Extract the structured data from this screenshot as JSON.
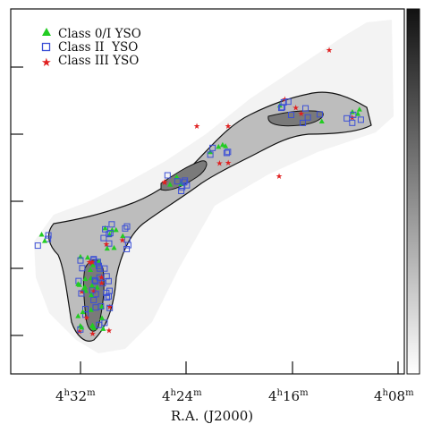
{
  "figure": {
    "xlabel": "R.A. (J2000)",
    "xticks": [
      {
        "h": "4",
        "m": "32"
      },
      {
        "h": "4",
        "m": "24"
      },
      {
        "h": "4",
        "m": "16"
      },
      {
        "h": "4",
        "m": "08"
      }
    ],
    "unit_h": "h",
    "unit_m": "m",
    "legend": [
      {
        "label": "Class 0/I YSO",
        "marker": "triangle",
        "color": "#22cc22"
      },
      {
        "label": "Class II  YSO",
        "marker": "square",
        "color": "#3b4fd6"
      },
      {
        "label": "Class III YSO",
        "marker": "star",
        "color": "#e02020"
      }
    ],
    "colorbar": {
      "from": "#ffffff",
      "to": "#000000"
    }
  }
}
